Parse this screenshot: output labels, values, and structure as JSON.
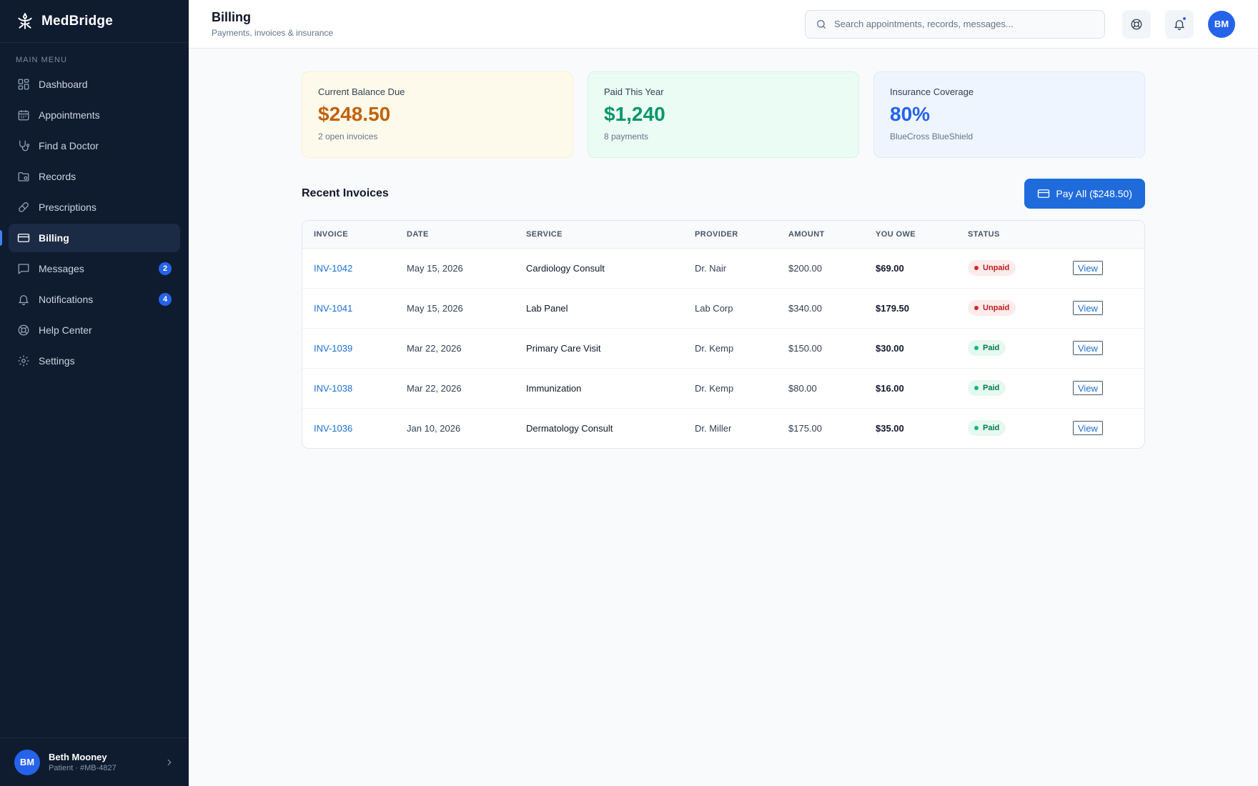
{
  "brand": {
    "name": "MedBridge",
    "logo_icon": "medbridge-logo-icon"
  },
  "sidebar": {
    "menu_label": "MAIN MENU",
    "items": [
      {
        "label": "Dashboard",
        "icon": "dashboard-icon",
        "active": false,
        "badge": ""
      },
      {
        "label": "Appointments",
        "icon": "calendar-icon",
        "active": false,
        "badge": ""
      },
      {
        "label": "Find a Doctor",
        "icon": "stethoscope-icon",
        "active": false,
        "badge": ""
      },
      {
        "label": "Records",
        "icon": "folder-icon",
        "active": false,
        "badge": ""
      },
      {
        "label": "Prescriptions",
        "icon": "pill-icon",
        "active": false,
        "badge": ""
      },
      {
        "label": "Billing",
        "icon": "credit-card-icon",
        "active": true,
        "badge": ""
      },
      {
        "label": "Messages",
        "icon": "message-icon",
        "active": false,
        "badge": "2"
      },
      {
        "label": "Notifications",
        "icon": "bell-icon",
        "active": false,
        "badge": "4"
      },
      {
        "label": "Help Center",
        "icon": "lifebuoy-icon",
        "active": false,
        "badge": ""
      },
      {
        "label": "Settings",
        "icon": "gear-icon",
        "active": false,
        "badge": ""
      }
    ],
    "user": {
      "initials": "BM",
      "name": "Beth Mooney",
      "sub": "Patient · #MB-4827"
    }
  },
  "header": {
    "title": "Billing",
    "subtitle": "Payments, invoices & insurance",
    "search_placeholder": "Search appointments, records, messages...",
    "avatar_initials": "BM"
  },
  "summary": {
    "balance": {
      "label": "Current Balance Due",
      "value": "$248.50",
      "sub": "2 open invoices"
    },
    "paid": {
      "label": "Paid This Year",
      "value": "$1,240",
      "sub": "8 payments"
    },
    "insurance": {
      "label": "Insurance Coverage",
      "value": "80%",
      "sub": "BlueCross BlueShield"
    }
  },
  "invoices": {
    "title": "Recent Invoices",
    "pay_all_label": "Pay All ($248.50)",
    "columns": [
      "INVOICE",
      "DATE",
      "SERVICE",
      "PROVIDER",
      "AMOUNT",
      "YOU OWE",
      "STATUS",
      ""
    ],
    "rows": [
      {
        "id": "INV-1042",
        "date": "May 15, 2026",
        "service": "Cardiology Consult",
        "provider": "Dr. Nair",
        "amount": "$200.00",
        "owe": "$69.00",
        "status": "Unpaid",
        "action": "View"
      },
      {
        "id": "INV-1041",
        "date": "May 15, 2026",
        "service": "Lab Panel",
        "provider": "Lab Corp",
        "amount": "$340.00",
        "owe": "$179.50",
        "status": "Unpaid",
        "action": "View"
      },
      {
        "id": "INV-1039",
        "date": "Mar 22, 2026",
        "service": "Primary Care Visit",
        "provider": "Dr. Kemp",
        "amount": "$150.00",
        "owe": "$30.00",
        "status": "Paid",
        "action": "View"
      },
      {
        "id": "INV-1038",
        "date": "Mar 22, 2026",
        "service": "Immunization",
        "provider": "Dr. Kemp",
        "amount": "$80.00",
        "owe": "$16.00",
        "status": "Paid",
        "action": "View"
      },
      {
        "id": "INV-1036",
        "date": "Jan 10, 2026",
        "service": "Dermatology Consult",
        "provider": "Dr. Miller",
        "amount": "$175.00",
        "owe": "$35.00",
        "status": "Paid",
        "action": "View"
      }
    ]
  },
  "colors": {
    "sidebar_bg": "#0f1b2f",
    "accent": "#2563eb",
    "balance": "#c2620a",
    "paid": "#059669",
    "unpaid": "#dc2626"
  }
}
